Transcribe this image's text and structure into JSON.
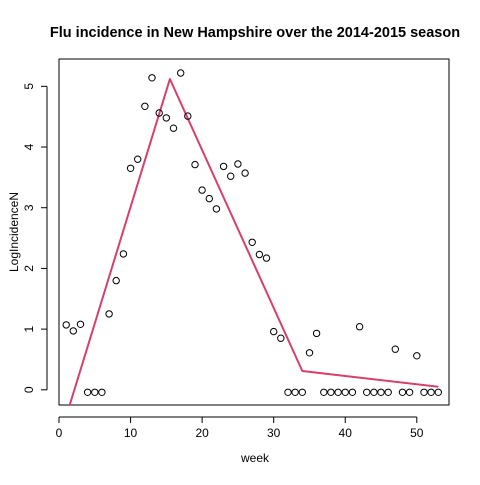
{
  "chart_data": {
    "type": "scatter",
    "title": "Flu incidence in New Hampshire over the 2014-2015 season",
    "xlabel": "week",
    "ylabel": "LogIncidenceN",
    "xlim": [
      0,
      54.5
    ],
    "ylim": [
      -0.25,
      5.45
    ],
    "x_ticks": [
      0,
      10,
      20,
      30,
      40,
      50
    ],
    "y_ticks": [
      0,
      1,
      2,
      3,
      4,
      5
    ],
    "grid": false,
    "legend": "none",
    "points": {
      "x": [
        1,
        2,
        3,
        4,
        5,
        6,
        7,
        8,
        9,
        10,
        11,
        12,
        13,
        14,
        15,
        16,
        17,
        18,
        19,
        20,
        21,
        22,
        23,
        24,
        25,
        26,
        27,
        28,
        29,
        30,
        31,
        32,
        33,
        34,
        35,
        36,
        37,
        38,
        39,
        40,
        41,
        42,
        43,
        44,
        45,
        46,
        47,
        48,
        49,
        50,
        51,
        52,
        53
      ],
      "y": [
        1.07,
        0.97,
        1.08,
        -0.04,
        -0.04,
        -0.04,
        1.25,
        1.8,
        2.24,
        3.65,
        3.8,
        4.67,
        5.14,
        4.56,
        4.48,
        4.31,
        5.22,
        4.51,
        3.71,
        3.29,
        3.15,
        2.98,
        3.68,
        3.52,
        3.72,
        3.57,
        2.43,
        2.23,
        2.17,
        0.96,
        0.85,
        -0.04,
        -0.04,
        -0.04,
        0.61,
        0.93,
        -0.04,
        -0.04,
        -0.04,
        -0.04,
        -0.04,
        1.04,
        -0.04,
        -0.04,
        -0.04,
        -0.04,
        0.67,
        -0.04,
        -0.04,
        0.56,
        -0.04,
        -0.04,
        -0.04
      ]
    },
    "fit_line": {
      "x": [
        1.5,
        15.5,
        34,
        53
      ],
      "y": [
        -0.25,
        5.12,
        0.31,
        0.05
      ],
      "color": "#d6406a"
    }
  }
}
